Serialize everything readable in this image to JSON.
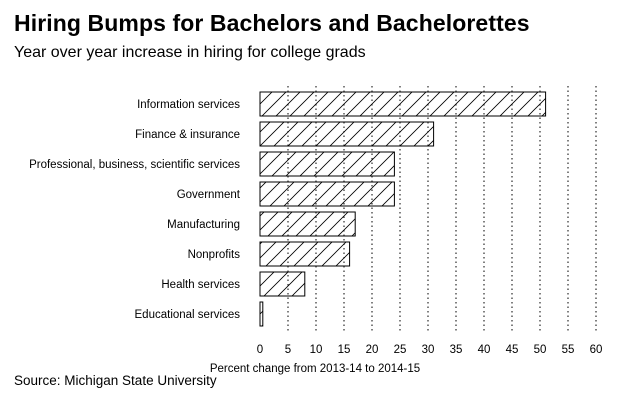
{
  "chart_data": {
    "type": "bar",
    "orientation": "horizontal",
    "title": "Hiring Bumps for Bachelors and Bachelorettes",
    "subtitle": "Year over year increase in hiring for college grads",
    "xlabel": "Percent change from 2013-14 to 2014-15",
    "ylabel": "",
    "source": "Source: Michigan State University",
    "categories": [
      "Information services",
      "Finance & insurance",
      "Professional, business, scientific services",
      "Government",
      "Manufacturing",
      "Nonprofits",
      "Health services",
      "Educational services"
    ],
    "values": [
      51,
      31,
      24,
      24,
      17,
      16,
      8,
      0.5
    ],
    "xlim": [
      0,
      60
    ],
    "xticks": [
      0,
      5,
      10,
      15,
      20,
      25,
      30,
      35,
      40,
      45,
      50,
      55,
      60
    ],
    "grid": "vertical-dotted",
    "bar_fill": "hatched",
    "legend": "none"
  }
}
